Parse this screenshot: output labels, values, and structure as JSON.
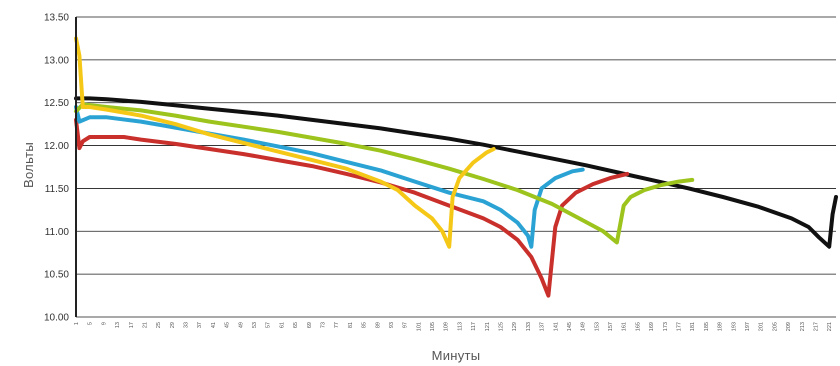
{
  "chart_data": {
    "type": "line",
    "title": "",
    "xlabel": "Минуты",
    "ylabel": "Вольты",
    "ylim": [
      10.0,
      13.5
    ],
    "xlim": [
      1,
      223
    ],
    "y_ticks": [
      "10.00",
      "10.50",
      "11.00",
      "11.50",
      "12.00",
      "12.50",
      "13.00",
      "13.50"
    ],
    "x_ticks": [
      "1",
      "5",
      "9",
      "13",
      "17",
      "21",
      "25",
      "29",
      "33",
      "37",
      "41",
      "45",
      "49",
      "53",
      "57",
      "61",
      "65",
      "69",
      "73",
      "77",
      "81",
      "85",
      "89",
      "93",
      "97",
      "101",
      "105",
      "109",
      "113",
      "117",
      "121",
      "125",
      "129",
      "133",
      "137",
      "141",
      "145",
      "149",
      "153",
      "157",
      "161",
      "165",
      "169",
      "173",
      "177",
      "181",
      "185",
      "189",
      "193",
      "197",
      "201",
      "205",
      "209",
      "213",
      "217",
      "221"
    ],
    "grid": "horizontal",
    "legend": "none",
    "series": [
      {
        "color": "#111111",
        "points": [
          [
            1,
            12.55
          ],
          [
            5,
            12.55
          ],
          [
            10,
            12.54
          ],
          [
            20,
            12.51
          ],
          [
            30,
            12.47
          ],
          [
            40,
            12.43
          ],
          [
            50,
            12.39
          ],
          [
            60,
            12.35
          ],
          [
            70,
            12.3
          ],
          [
            80,
            12.25
          ],
          [
            90,
            12.2
          ],
          [
            100,
            12.14
          ],
          [
            110,
            12.08
          ],
          [
            120,
            12.01
          ],
          [
            130,
            11.93
          ],
          [
            140,
            11.85
          ],
          [
            150,
            11.77
          ],
          [
            160,
            11.68
          ],
          [
            170,
            11.59
          ],
          [
            180,
            11.5
          ],
          [
            190,
            11.4
          ],
          [
            200,
            11.29
          ],
          [
            210,
            11.15
          ],
          [
            215,
            11.05
          ],
          [
            218,
            10.93
          ],
          [
            221,
            10.82
          ],
          [
            222,
            11.2
          ],
          [
            223,
            11.4
          ]
        ]
      },
      {
        "color": "#c9302c",
        "points": [
          [
            1,
            12.3
          ],
          [
            2,
            11.97
          ],
          [
            3,
            12.05
          ],
          [
            5,
            12.1
          ],
          [
            15,
            12.1
          ],
          [
            20,
            12.07
          ],
          [
            30,
            12.02
          ],
          [
            40,
            11.96
          ],
          [
            50,
            11.9
          ],
          [
            60,
            11.83
          ],
          [
            70,
            11.76
          ],
          [
            80,
            11.67
          ],
          [
            90,
            11.57
          ],
          [
            100,
            11.45
          ],
          [
            110,
            11.3
          ],
          [
            120,
            11.15
          ],
          [
            125,
            11.05
          ],
          [
            130,
            10.9
          ],
          [
            134,
            10.7
          ],
          [
            137,
            10.45
          ],
          [
            139,
            10.25
          ],
          [
            141,
            11.05
          ],
          [
            143,
            11.3
          ],
          [
            147,
            11.45
          ],
          [
            152,
            11.55
          ],
          [
            157,
            11.62
          ],
          [
            162,
            11.67
          ]
        ]
      },
      {
        "color": "#2aa3d4",
        "points": [
          [
            1,
            12.45
          ],
          [
            2,
            12.28
          ],
          [
            5,
            12.33
          ],
          [
            10,
            12.33
          ],
          [
            20,
            12.28
          ],
          [
            30,
            12.21
          ],
          [
            40,
            12.14
          ],
          [
            50,
            12.07
          ],
          [
            60,
            11.99
          ],
          [
            70,
            11.91
          ],
          [
            80,
            11.81
          ],
          [
            90,
            11.71
          ],
          [
            100,
            11.58
          ],
          [
            110,
            11.45
          ],
          [
            120,
            11.35
          ],
          [
            125,
            11.25
          ],
          [
            130,
            11.1
          ],
          [
            133,
            10.95
          ],
          [
            134,
            10.82
          ],
          [
            135,
            11.25
          ],
          [
            137,
            11.5
          ],
          [
            141,
            11.62
          ],
          [
            146,
            11.7
          ],
          [
            149,
            11.72
          ]
        ]
      },
      {
        "color": "#9cc41c",
        "points": [
          [
            1,
            12.4
          ],
          [
            3,
            12.48
          ],
          [
            10,
            12.45
          ],
          [
            20,
            12.41
          ],
          [
            30,
            12.35
          ],
          [
            40,
            12.28
          ],
          [
            50,
            12.22
          ],
          [
            60,
            12.16
          ],
          [
            70,
            12.09
          ],
          [
            80,
            12.02
          ],
          [
            90,
            11.94
          ],
          [
            100,
            11.84
          ],
          [
            110,
            11.73
          ],
          [
            120,
            11.61
          ],
          [
            130,
            11.48
          ],
          [
            140,
            11.32
          ],
          [
            148,
            11.15
          ],
          [
            155,
            11.0
          ],
          [
            159,
            10.87
          ],
          [
            161,
            11.3
          ],
          [
            163,
            11.4
          ],
          [
            167,
            11.48
          ],
          [
            172,
            11.54
          ],
          [
            177,
            11.58
          ],
          [
            181,
            11.6
          ]
        ]
      },
      {
        "color": "#f5c818",
        "points": [
          [
            1,
            13.25
          ],
          [
            2,
            13.05
          ],
          [
            3,
            12.45
          ],
          [
            5,
            12.45
          ],
          [
            10,
            12.42
          ],
          [
            20,
            12.35
          ],
          [
            30,
            12.25
          ],
          [
            40,
            12.13
          ],
          [
            50,
            12.03
          ],
          [
            60,
            11.93
          ],
          [
            70,
            11.83
          ],
          [
            80,
            11.73
          ],
          [
            90,
            11.58
          ],
          [
            95,
            11.48
          ],
          [
            100,
            11.3
          ],
          [
            105,
            11.15
          ],
          [
            108,
            11.0
          ],
          [
            110,
            10.82
          ],
          [
            111,
            11.4
          ],
          [
            113,
            11.62
          ],
          [
            117,
            11.8
          ],
          [
            121,
            11.92
          ],
          [
            123,
            11.96
          ]
        ]
      }
    ]
  }
}
